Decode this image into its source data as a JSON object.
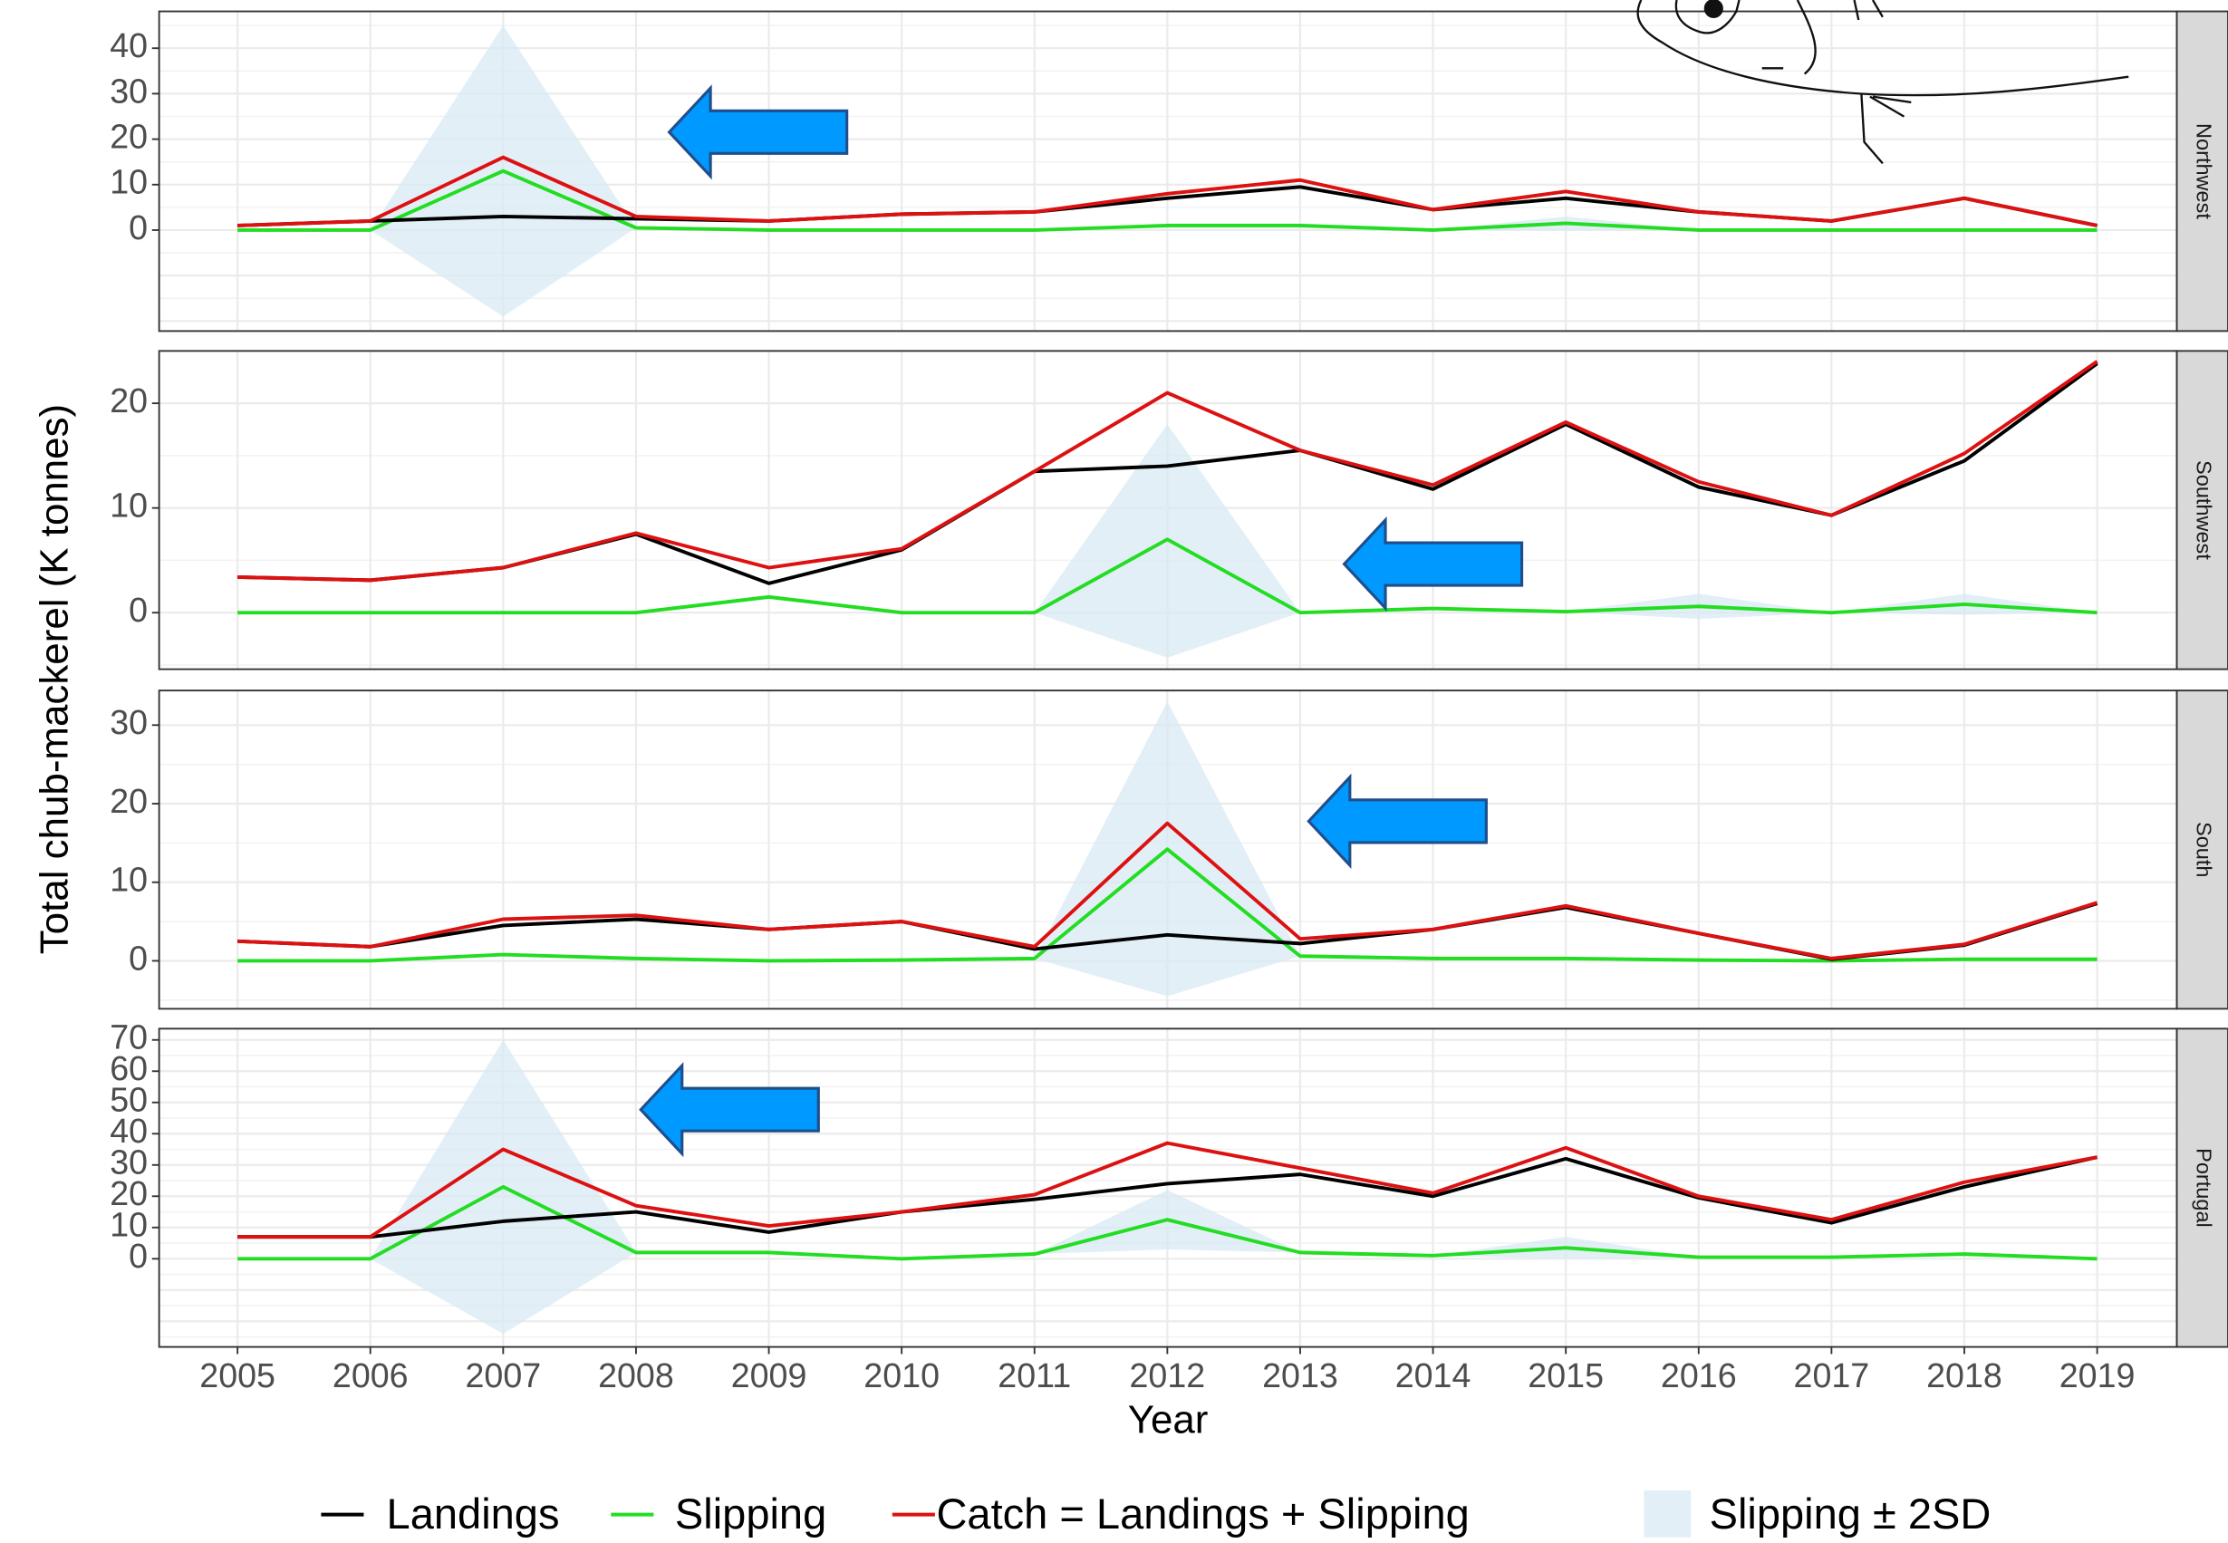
{
  "chart_data": {
    "type": "line",
    "xlabel": "Year",
    "ylabel": "Total chub-mackerel (K tonnes)",
    "x": [
      2005,
      2006,
      2007,
      2008,
      2009,
      2010,
      2011,
      2012,
      2013,
      2014,
      2015,
      2016,
      2017,
      2018,
      2019
    ],
    "xlim": [
      2004.41,
      2019.6
    ],
    "xticks": [
      2005,
      2006,
      2007,
      2008,
      2009,
      2010,
      2011,
      2012,
      2013,
      2014,
      2015,
      2016,
      2017,
      2018,
      2019
    ],
    "grid": true,
    "series": [
      {
        "name": "Landings",
        "color": "#000000"
      },
      {
        "name": "Slipping",
        "color": "#22dd22"
      },
      {
        "name": "Catch = Landings + Slipping",
        "color": "#dd1111"
      }
    ],
    "band": {
      "name": "Slipping ± 2SD",
      "color": "#d8eaf3"
    },
    "facets": [
      {
        "label": "Northwest",
        "ylim": [
          -22.2,
          48.1
        ],
        "yticks": [
          0,
          10,
          20,
          30,
          40
        ],
        "series": [
          {
            "values": [
              1,
              2,
              3,
              2.5,
              2,
              3.5,
              4,
              7,
              9.5,
              4.5,
              7,
              4,
              2,
              7,
              1
            ]
          },
          {
            "values": [
              0,
              0,
              13,
              0.5,
              0,
              0,
              0,
              1,
              1,
              0,
              1.5,
              0,
              0,
              0,
              0
            ]
          },
          {
            "values": [
              1,
              2,
              16,
              3,
              2,
              3.5,
              4,
              8,
              11,
              4.5,
              8.5,
              4,
              2,
              7,
              1
            ]
          }
        ],
        "band": {
          "lower": [
            0,
            0,
            -19,
            0.5,
            0,
            0,
            0,
            0.5,
            0.5,
            0,
            0,
            0,
            0,
            0,
            0
          ],
          "upper": [
            0,
            0,
            45,
            0.5,
            0,
            0,
            0,
            1.5,
            1.5,
            0,
            3,
            0,
            0,
            0,
            0
          ]
        }
      },
      {
        "label": "Southwest",
        "ylim": [
          -5.4,
          25
        ],
        "yticks": [
          0,
          10,
          20
        ],
        "series": [
          {
            "values": [
              3.4,
              3.1,
              4.3,
              7.5,
              2.8,
              6,
              13.5,
              14,
              15.5,
              11.8,
              18,
              12,
              9.3,
              14.5,
              23.8
            ]
          },
          {
            "values": [
              0,
              0,
              0,
              0,
              1.5,
              0,
              0,
              7,
              0,
              0.4,
              0.1,
              0.6,
              0,
              0.8,
              0
            ]
          },
          {
            "values": [
              3.4,
              3.1,
              4.3,
              7.6,
              4.3,
              6.1,
              13.5,
              21,
              15.5,
              12.2,
              18.2,
              12.5,
              9.3,
              15.2,
              24
            ]
          }
        ],
        "band": {
          "lower": [
            0,
            0,
            0,
            0,
            1.5,
            0,
            0,
            -4.3,
            0,
            0.4,
            0.1,
            -0.6,
            0,
            -0.2,
            0
          ],
          "upper": [
            0,
            0,
            0,
            0,
            1.5,
            0,
            0,
            18,
            0,
            0.4,
            0.1,
            1.8,
            0,
            1.8,
            0
          ]
        }
      },
      {
        "label": "South",
        "ylim": [
          -6.1,
          34.4
        ],
        "yticks": [
          0,
          10,
          20,
          30
        ],
        "series": [
          {
            "values": [
              2.5,
              1.8,
              4.5,
              5.3,
              4,
              5,
              1.5,
              3.3,
              2.2,
              4,
              6.8,
              3.5,
              0.2,
              2,
              7.3
            ]
          },
          {
            "values": [
              0,
              0,
              0.8,
              0.3,
              0,
              0.1,
              0.3,
              14.2,
              0.6,
              0.3,
              0.3,
              0.1,
              0,
              0.2,
              0.2
            ]
          },
          {
            "values": [
              2.5,
              1.8,
              5.3,
              5.8,
              4,
              5,
              1.8,
              17.5,
              2.8,
              4,
              7,
              3.5,
              0.3,
              2.1,
              7.4
            ]
          }
        ],
        "band": {
          "lower": [
            0,
            0,
            0.8,
            0.3,
            0,
            0.1,
            0.3,
            -4.5,
            0.6,
            0.3,
            0.3,
            0.1,
            0,
            0.2,
            0.2
          ],
          "upper": [
            0,
            0,
            0.8,
            0.3,
            0,
            0.1,
            0.3,
            33,
            0.6,
            0.3,
            0.3,
            0.1,
            0,
            0.2,
            0.2
          ]
        }
      },
      {
        "label": "Portugal",
        "ylim": [
          -28.2,
          73.6
        ],
        "yticks": [
          0,
          10,
          20,
          30,
          40,
          50,
          60,
          70
        ],
        "series": [
          {
            "values": [
              7,
              7,
              12,
              15,
              8.5,
              15,
              19,
              24,
              27,
              20,
              32,
              19.5,
              11.5,
              23,
              32.5
            ]
          },
          {
            "values": [
              0,
              0,
              23,
              2,
              2,
              0,
              1.5,
              12.5,
              2,
              1,
              3.5,
              0.5,
              0.5,
              1.5,
              0
            ]
          },
          {
            "values": [
              7,
              7,
              35,
              17,
              10.5,
              15,
              20.5,
              37,
              29,
              21,
              35.5,
              20,
              12.5,
              24.5,
              32.5
            ]
          }
        ],
        "band": {
          "lower": [
            0,
            0,
            -24,
            2,
            2,
            0,
            1.5,
            3,
            2,
            1,
            0,
            0.5,
            0.5,
            1.5,
            0
          ],
          "upper": [
            0,
            0,
            70,
            2,
            2,
            0,
            1.5,
            22,
            2,
            1,
            7,
            0.5,
            0.5,
            1.5,
            0
          ]
        }
      }
    ]
  }
}
